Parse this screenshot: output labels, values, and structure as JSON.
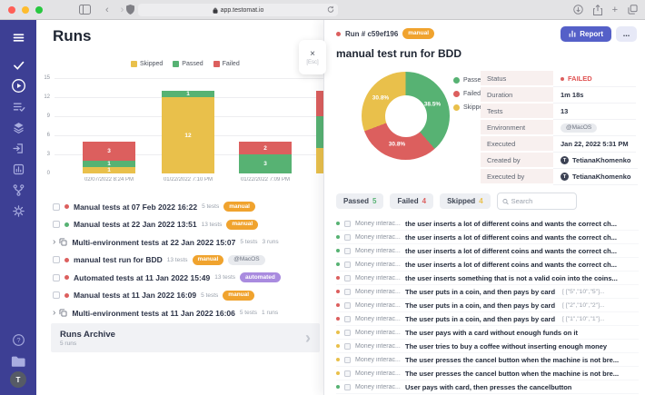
{
  "browser": {
    "url": "app.testomat.io"
  },
  "colors": {
    "passed": "#57b273",
    "failed": "#dc5f5e",
    "skipped": "#e9c04b",
    "accent": "#5560c8",
    "sidebar": "#3d3f94",
    "traffic_red": "#ff5f57",
    "traffic_yellow": "#febc2e",
    "traffic_green": "#28c840"
  },
  "sidebar": {
    "icons": [
      "menu-icon",
      "check-icon",
      "runs-play-icon",
      "test-plans-icon",
      "layers-icon",
      "import-icon",
      "analytics-icon",
      "branch-icon",
      "settings-gear-icon"
    ],
    "bottom_icons": [
      "help-icon",
      "projects-folder-icon"
    ],
    "avatar_initial": "T"
  },
  "runs_panel": {
    "title": "Runs",
    "archive": {
      "title": "Runs Archive",
      "subtitle": "5 runs"
    },
    "runs": [
      {
        "type": "run",
        "status": "failed",
        "title": "Manual tests at 07 Feb 2022 16:22",
        "meta": "5 tests",
        "badges": [
          {
            "label": "manual",
            "style": "manual"
          }
        ]
      },
      {
        "type": "run",
        "status": "passed",
        "title": "Manual tests at 22 Jan 2022 13:51",
        "meta": "13 tests",
        "badges": [
          {
            "label": "manual",
            "style": "manual"
          }
        ]
      },
      {
        "type": "group",
        "title": "Multi-environment tests at 22 Jan 2022 15:07",
        "meta": "5 tests",
        "meta2": "3 runs"
      },
      {
        "type": "run",
        "status": "failed",
        "title": "manual test run for BDD",
        "meta": "13 tests",
        "badges": [
          {
            "label": "manual",
            "style": "manual"
          },
          {
            "label": "@MacOS",
            "style": "env"
          }
        ]
      },
      {
        "type": "run",
        "status": "failed",
        "title": "Automated tests at 11 Jan 2022 15:49",
        "meta": "13 tests",
        "badges": [
          {
            "label": "automated",
            "style": "automated"
          }
        ]
      },
      {
        "type": "run",
        "status": "failed",
        "title": "Manual tests at 11 Jan 2022 16:09",
        "meta": "5 tests",
        "badges": [
          {
            "label": "manual",
            "style": "manual"
          }
        ]
      },
      {
        "type": "group",
        "title": "Multi-environment tests at 11 Jan 2022 16:06",
        "meta": "5 tests",
        "meta2": "1 runs"
      }
    ]
  },
  "chart_data": [
    {
      "type": "bar",
      "stacked": true,
      "title": "Runs history",
      "legend": [
        "Skipped",
        "Passed",
        "Failed"
      ],
      "legend_position": "top",
      "ylim": [
        0,
        15
      ],
      "yticks": [
        0,
        3,
        6,
        9,
        12,
        15
      ],
      "grid": true,
      "categories": [
        "02/07/2022 8:24 PM",
        "01/22/2022 7:10 PM",
        "01/22/2022 7:09 PM",
        ""
      ],
      "bars": [
        {
          "category": "02/07/2022 8:24 PM",
          "segments": [
            {
              "name": "skipped",
              "value": 1
            },
            {
              "name": "passed",
              "value": 1
            },
            {
              "name": "failed",
              "value": 3
            }
          ]
        },
        {
          "category": "01/22/2022 7:10 PM",
          "segments": [
            {
              "name": "skipped",
              "value": 12
            },
            {
              "name": "passed",
              "value": 1
            }
          ]
        },
        {
          "category": "01/22/2022 7:09 PM",
          "segments": [
            {
              "name": "passed",
              "value": 3
            },
            {
              "name": "failed",
              "value": 2
            }
          ]
        },
        {
          "category": "",
          "segments": [
            {
              "name": "skipped",
              "value": 4
            },
            {
              "name": "passed",
              "value": 5
            },
            {
              "name": "failed",
              "value": 4
            }
          ]
        }
      ]
    },
    {
      "type": "pie",
      "donut": true,
      "legend_position": "right",
      "slices": [
        {
          "name": "Passed",
          "value": 38.5,
          "label": "38.5%"
        },
        {
          "name": "Failed",
          "value": 30.8,
          "label": "30.8%"
        },
        {
          "name": "Skipped",
          "value": 30.8,
          "label": "30.8%"
        }
      ]
    }
  ],
  "run_detail": {
    "run_label": "Run #",
    "run_id": "c59ef196",
    "badge": "manual",
    "report_label": "Report",
    "more_label": "...",
    "close_symbol": "×",
    "close_esc": "[Esc]",
    "title": "manual test run for BDD",
    "stats": [
      {
        "label": "Status",
        "type": "status",
        "value": "FAILED"
      },
      {
        "label": "Duration",
        "type": "text",
        "value": "1m 18s"
      },
      {
        "label": "Tests",
        "type": "text",
        "value": "13"
      },
      {
        "label": "Environment",
        "type": "pill",
        "value": "@MacOS"
      },
      {
        "label": "Executed",
        "type": "text",
        "value": "Jan 22, 2022 5:31 PM"
      },
      {
        "label": "Created by",
        "type": "user",
        "value": "TetianaKhomenko"
      },
      {
        "label": "Executed by",
        "type": "user",
        "value": "TetianaKhomenko"
      }
    ],
    "tabs": [
      {
        "label": "Passed",
        "count": "5",
        "status": "passed"
      },
      {
        "label": "Failed",
        "count": "4",
        "status": "failed"
      },
      {
        "label": "Skipped",
        "count": "4",
        "status": "skipped"
      }
    ],
    "search_placeholder": "Search",
    "tests": [
      {
        "status": "passed",
        "name": "Money interac...",
        "title": "the user inserts a lot of different coins and wants the correct ch..."
      },
      {
        "status": "passed",
        "name": "Money interac...",
        "title": "the user inserts a lot of different coins and wants the correct ch..."
      },
      {
        "status": "passed",
        "name": "Money interac...",
        "title": "the user inserts a lot of different coins and wants the correct ch..."
      },
      {
        "status": "passed",
        "name": "Money interac...",
        "title": "the user inserts a lot of different coins and wants the correct ch..."
      },
      {
        "status": "failed",
        "name": "Money interac...",
        "title": "the user inserts something that is not a valid coin into the coins..."
      },
      {
        "status": "failed",
        "name": "Money interac...",
        "title": "The user puts in a coin, and then pays by card",
        "example": "[ [\"5\",\"10\",\"5\"]..."
      },
      {
        "status": "failed",
        "name": "Money interac...",
        "title": "The user puts in a coin, and then pays by card",
        "example": "[ [\"2\",\"10\",\"2\"]..."
      },
      {
        "status": "failed",
        "name": "Money interac...",
        "title": "The user puts in a coin, and then pays by card",
        "example": "[ [\"1\",\"10\",\"1\"]..."
      },
      {
        "status": "skipped",
        "name": "Money interac...",
        "title": "The user pays with a card without enough funds on it"
      },
      {
        "status": "skipped",
        "name": "Money interac...",
        "title": "The user tries to buy a coffee without inserting enough money"
      },
      {
        "status": "skipped",
        "name": "Money interac...",
        "title": "The user presses the cancel button when the machine is not bre..."
      },
      {
        "status": "skipped",
        "name": "Money interac...",
        "title": "The user presses the cancel button when the machine is not bre..."
      },
      {
        "status": "passed",
        "name": "Money interac...",
        "title": "User pays with card, then presses the cancelbutton"
      }
    ]
  }
}
